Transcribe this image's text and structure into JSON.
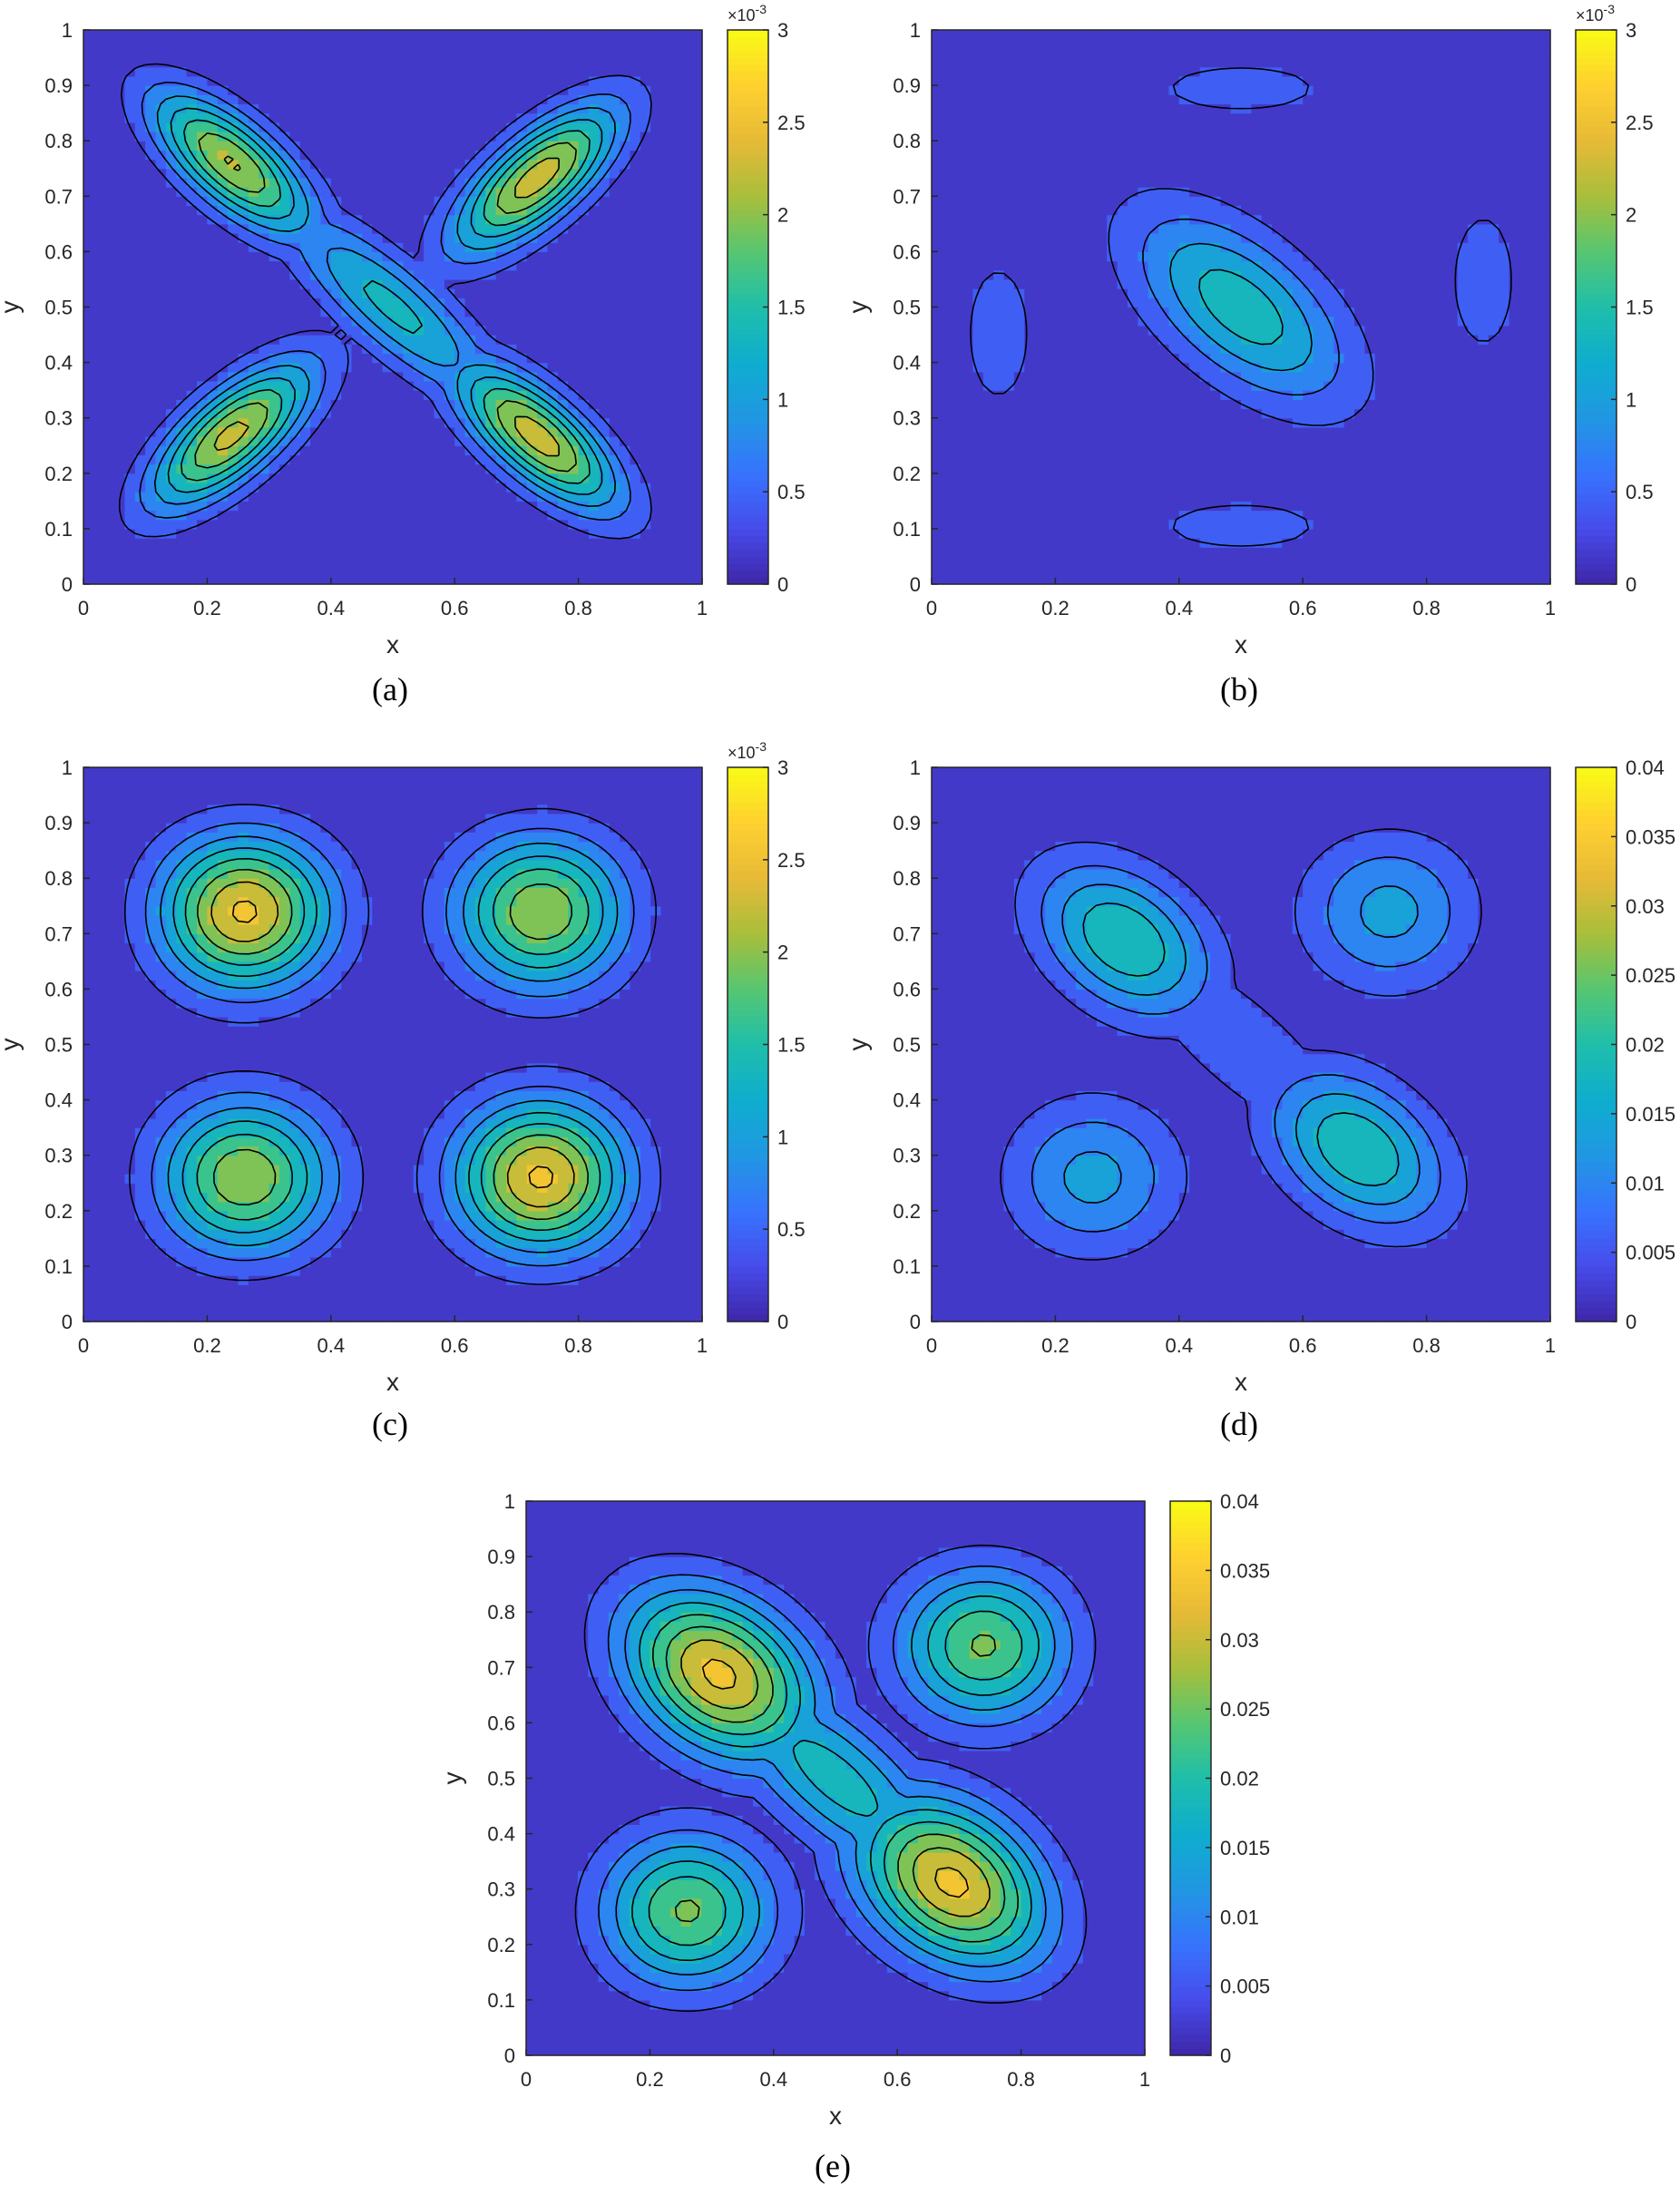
{
  "figure": {
    "panels": [
      {
        "id": "a",
        "caption": "(a)",
        "xlabel": "x",
        "ylabel": "y",
        "x_ticks": [
          "0",
          "0.2",
          "0.4",
          "0.6",
          "0.8",
          "1"
        ],
        "y_ticks": [
          "0",
          "0.1",
          "0.2",
          "0.3",
          "0.4",
          "0.5",
          "0.6",
          "0.7",
          "0.8",
          "0.9",
          "1"
        ],
        "colorbar": {
          "ticks": [
            "0",
            "0.5",
            "1",
            "1.5",
            "2",
            "2.5",
            "3"
          ],
          "exponent_base": "×10",
          "exponent_power": "-3"
        }
      },
      {
        "id": "b",
        "caption": "(b)",
        "xlabel": "x",
        "ylabel": "y",
        "x_ticks": [
          "0",
          "0.2",
          "0.4",
          "0.6",
          "0.8",
          "1"
        ],
        "y_ticks": [
          "0",
          "0.1",
          "0.2",
          "0.3",
          "0.4",
          "0.5",
          "0.6",
          "0.7",
          "0.8",
          "0.9",
          "1"
        ],
        "colorbar": {
          "ticks": [
            "0",
            "0.5",
            "1",
            "1.5",
            "2",
            "2.5",
            "3"
          ],
          "exponent_base": "×10",
          "exponent_power": "-3"
        }
      },
      {
        "id": "c",
        "caption": "(c)",
        "xlabel": "x",
        "ylabel": "y",
        "x_ticks": [
          "0",
          "0.2",
          "0.4",
          "0.6",
          "0.8",
          "1"
        ],
        "y_ticks": [
          "0",
          "0.1",
          "0.2",
          "0.3",
          "0.4",
          "0.5",
          "0.6",
          "0.7",
          "0.8",
          "0.9",
          "1"
        ],
        "colorbar": {
          "ticks": [
            "0",
            "0.5",
            "1",
            "1.5",
            "2",
            "2.5",
            "3"
          ],
          "exponent_base": "×10",
          "exponent_power": "-3"
        }
      },
      {
        "id": "d",
        "caption": "(d)",
        "xlabel": "x",
        "ylabel": "y",
        "x_ticks": [
          "0",
          "0.2",
          "0.4",
          "0.6",
          "0.8",
          "1"
        ],
        "y_ticks": [
          "0",
          "0.1",
          "0.2",
          "0.3",
          "0.4",
          "0.5",
          "0.6",
          "0.7",
          "0.8",
          "0.9",
          "1"
        ],
        "colorbar": {
          "ticks": [
            "0",
            "0.005",
            "0.01",
            "0.015",
            "0.02",
            "0.025",
            "0.03",
            "0.035",
            "0.04"
          ],
          "exponent_base": "",
          "exponent_power": ""
        }
      },
      {
        "id": "e",
        "caption": "(e)",
        "xlabel": "x",
        "ylabel": "y",
        "x_ticks": [
          "0",
          "0.2",
          "0.4",
          "0.6",
          "0.8",
          "1"
        ],
        "y_ticks": [
          "0",
          "0.1",
          "0.2",
          "0.3",
          "0.4",
          "0.5",
          "0.6",
          "0.7",
          "0.8",
          "0.9",
          "1"
        ],
        "colorbar": {
          "ticks": [
            "0",
            "0.005",
            "0.01",
            "0.015",
            "0.02",
            "0.025",
            "0.03",
            "0.035",
            "0.04"
          ],
          "exponent_base": "",
          "exponent_power": ""
        }
      }
    ]
  },
  "chart_data": [
    {
      "panel": "a",
      "type": "heatmap",
      "subtype": "filled-contour",
      "colormap": "parula",
      "xlim": [
        0,
        1
      ],
      "ylim": [
        0,
        1
      ],
      "clim": [
        0,
        0.003
      ],
      "grid": false,
      "colorbar": "right",
      "peaks": [
        {
          "x": 0.22,
          "y": 0.78,
          "sx": 0.13,
          "sy": 0.05,
          "rot": -45,
          "amp": 0.00285
        },
        {
          "x": 0.75,
          "y": 0.75,
          "sx": 0.13,
          "sy": 0.05,
          "rot": 45,
          "amp": 0.00285
        },
        {
          "x": 0.22,
          "y": 0.25,
          "sx": 0.13,
          "sy": 0.05,
          "rot": 45,
          "amp": 0.00285
        },
        {
          "x": 0.75,
          "y": 0.25,
          "sx": 0.13,
          "sy": 0.05,
          "rot": -45,
          "amp": 0.00285
        },
        {
          "x": 0.5,
          "y": 0.5,
          "sx": 0.18,
          "sy": 0.05,
          "rot": -45,
          "amp": 0.0013
        }
      ]
    },
    {
      "panel": "b",
      "type": "heatmap",
      "subtype": "filled-contour",
      "colormap": "parula",
      "xlim": [
        0,
        1
      ],
      "ylim": [
        0,
        1
      ],
      "clim": [
        0,
        0.003
      ],
      "grid": false,
      "colorbar": "right",
      "peaks": [
        {
          "x": 0.5,
          "y": 0.5,
          "sx": 0.16,
          "sy": 0.08,
          "rot": -45,
          "amp": 0.0014
        },
        {
          "x": 0.1,
          "y": 0.45,
          "sx": 0.05,
          "sy": 0.12,
          "rot": 0,
          "amp": 0.0007
        },
        {
          "x": 0.9,
          "y": 0.55,
          "sx": 0.05,
          "sy": 0.12,
          "rot": 0,
          "amp": 0.0007
        },
        {
          "x": 0.5,
          "y": 0.9,
          "sx": 0.12,
          "sy": 0.04,
          "rot": 0,
          "amp": 0.0007
        },
        {
          "x": 0.5,
          "y": 0.1,
          "sx": 0.12,
          "sy": 0.04,
          "rot": 0,
          "amp": 0.0007
        },
        {
          "x": 0.1,
          "y": 0.9,
          "sx": 0.04,
          "sy": 0.04,
          "rot": 0,
          "amp": 0.0006
        },
        {
          "x": 0.9,
          "y": 0.9,
          "sx": 0.04,
          "sy": 0.04,
          "rot": 0,
          "amp": 0.0006
        },
        {
          "x": 0.1,
          "y": 0.1,
          "sx": 0.04,
          "sy": 0.04,
          "rot": 0,
          "amp": 0.0006
        },
        {
          "x": 0.9,
          "y": 0.1,
          "sx": 0.04,
          "sy": 0.04,
          "rot": 0,
          "amp": 0.0006
        }
      ]
    },
    {
      "panel": "c",
      "type": "heatmap",
      "subtype": "filled-contour",
      "colormap": "parula",
      "xlim": [
        0,
        1
      ],
      "ylim": [
        0,
        1
      ],
      "clim": [
        0,
        0.003
      ],
      "grid": false,
      "colorbar": "right",
      "peaks": [
        {
          "x": 0.25,
          "y": 0.75,
          "sx": 0.1,
          "sy": 0.1,
          "rot": 0,
          "amp": 0.0031
        },
        {
          "x": 0.75,
          "y": 0.75,
          "sx": 0.1,
          "sy": 0.1,
          "rot": 0,
          "amp": 0.0026
        },
        {
          "x": 0.25,
          "y": 0.25,
          "sx": 0.1,
          "sy": 0.1,
          "rot": 0,
          "amp": 0.0026
        },
        {
          "x": 0.75,
          "y": 0.25,
          "sx": 0.1,
          "sy": 0.1,
          "rot": 0,
          "amp": 0.0031
        }
      ]
    },
    {
      "panel": "d",
      "type": "heatmap",
      "subtype": "filled-contour",
      "colormap": "parula",
      "xlim": [
        0,
        1
      ],
      "ylim": [
        0,
        1
      ],
      "clim": [
        0,
        0.04
      ],
      "grid": false,
      "colorbar": "right",
      "peaks": [
        {
          "x": 0.3,
          "y": 0.7,
          "sx": 0.12,
          "sy": 0.08,
          "rot": -45,
          "amp": 0.023
        },
        {
          "x": 0.7,
          "y": 0.3,
          "sx": 0.12,
          "sy": 0.08,
          "rot": -45,
          "amp": 0.023
        },
        {
          "x": 0.75,
          "y": 0.75,
          "sx": 0.1,
          "sy": 0.1,
          "rot": 0,
          "amp": 0.017
        },
        {
          "x": 0.25,
          "y": 0.25,
          "sx": 0.1,
          "sy": 0.1,
          "rot": 0,
          "amp": 0.017
        },
        {
          "x": 0.5,
          "y": 0.5,
          "sx": 0.2,
          "sy": 0.06,
          "rot": -45,
          "amp": 0.008
        }
      ]
    },
    {
      "panel": "e",
      "type": "heatmap",
      "subtype": "filled-contour",
      "colormap": "parula",
      "xlim": [
        0,
        1
      ],
      "ylim": [
        0,
        1
      ],
      "clim": [
        0,
        0.04
      ],
      "grid": false,
      "colorbar": "right",
      "peaks": [
        {
          "x": 0.3,
          "y": 0.7,
          "sx": 0.13,
          "sy": 0.09,
          "rot": -45,
          "amp": 0.038
        },
        {
          "x": 0.7,
          "y": 0.3,
          "sx": 0.13,
          "sy": 0.09,
          "rot": -45,
          "amp": 0.038
        },
        {
          "x": 0.75,
          "y": 0.75,
          "sx": 0.1,
          "sy": 0.1,
          "rot": 0,
          "amp": 0.031
        },
        {
          "x": 0.25,
          "y": 0.25,
          "sx": 0.1,
          "sy": 0.1,
          "rot": 0,
          "amp": 0.031
        },
        {
          "x": 0.5,
          "y": 0.5,
          "sx": 0.2,
          "sy": 0.07,
          "rot": -45,
          "amp": 0.018
        }
      ]
    }
  ]
}
